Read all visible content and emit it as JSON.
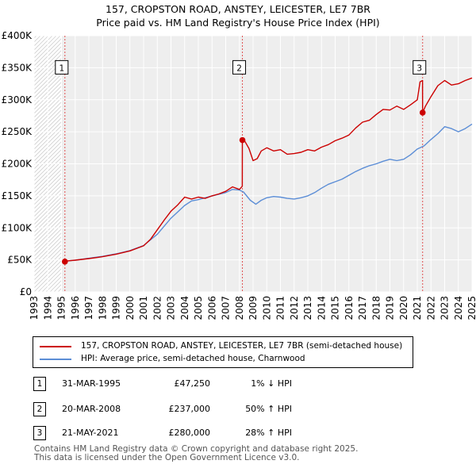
{
  "title": "157, CROPSTON ROAD, ANSTEY, LEICESTER, LE7 7BR",
  "subtitle": "Price paid vs. HM Land Registry's House Price Index (HPI)",
  "chart_data": {
    "type": "line",
    "x_ticks": [
      "1993",
      "1994",
      "1995",
      "1996",
      "1997",
      "1998",
      "1999",
      "2000",
      "2001",
      "2002",
      "2003",
      "2004",
      "2005",
      "2006",
      "2007",
      "2008",
      "2009",
      "2010",
      "2011",
      "2012",
      "2013",
      "2014",
      "2015",
      "2016",
      "2017",
      "2018",
      "2019",
      "2020",
      "2021",
      "2022",
      "2023",
      "2024",
      "2025"
    ],
    "y_ticks": [
      "£0",
      "£50K",
      "£100K",
      "£150K",
      "£200K",
      "£250K",
      "£300K",
      "£350K",
      "£400K"
    ],
    "xlim": [
      1993,
      2025
    ],
    "ylim": [
      0,
      400000
    ],
    "series": [
      {
        "name": "157, CROPSTON ROAD, ANSTEY, LEICESTER, LE7 7BR (semi-detached house)",
        "color": "#cc0000",
        "x": [
          1995.25,
          1995.5,
          1996,
          1997,
          1998,
          1999,
          2000,
          2001,
          2001.5,
          2002,
          2002.5,
          2003,
          2003.5,
          2004,
          2004.5,
          2005,
          2005.5,
          2006,
          2006.5,
          2007,
          2007.5,
          2008.0,
          2008.21,
          2008.22,
          2008.4,
          2008.7,
          2009.0,
          2009.3,
          2009.6,
          2010,
          2010.5,
          2011,
          2011.5,
          2012,
          2012.5,
          2013,
          2013.5,
          2014,
          2014.5,
          2015,
          2015.5,
          2016,
          2016.5,
          2017,
          2017.5,
          2018,
          2018.5,
          2019,
          2019.5,
          2020,
          2020.5,
          2021.0,
          2021.2,
          2021.38,
          2021.39,
          2021.6,
          2022,
          2022.5,
          2023,
          2023.5,
          2024,
          2024.5,
          2025
        ],
        "values": [
          47250,
          48500,
          49500,
          52000,
          55000,
          59000,
          64000,
          72000,
          82000,
          97000,
          112000,
          126000,
          136000,
          148000,
          145000,
          148000,
          146000,
          150000,
          153000,
          157000,
          164000,
          160000,
          165000,
          237000,
          235000,
          224000,
          205000,
          208000,
          220000,
          225000,
          220000,
          222000,
          215000,
          216000,
          218000,
          222000,
          220000,
          226000,
          230000,
          236000,
          240000,
          245000,
          256000,
          265000,
          268000,
          277000,
          285000,
          284000,
          290000,
          285000,
          292000,
          300000,
          328000,
          330000,
          280000,
          290000,
          305000,
          322000,
          330000,
          323000,
          325000,
          330000,
          334000
        ]
      },
      {
        "name": "HPI: Average price, semi-detached house, Charnwood",
        "color": "#5b8dd6",
        "x": [
          1995.25,
          1996,
          1997,
          1998,
          1999,
          2000,
          2001,
          2002,
          2003,
          2004,
          2004.5,
          2005,
          2006,
          2007,
          2007.5,
          2008,
          2008.3,
          2008.8,
          2009.2,
          2009.6,
          2010,
          2010.5,
          2011,
          2011.5,
          2012,
          2012.5,
          2013,
          2013.5,
          2014,
          2014.5,
          2015,
          2015.5,
          2016,
          2016.5,
          2017,
          2017.5,
          2018,
          2018.5,
          2019,
          2019.5,
          2020,
          2020.5,
          2021,
          2021.5,
          2022,
          2022.5,
          2023,
          2023.5,
          2024,
          2024.5,
          2025
        ],
        "values": [
          48000,
          49500,
          52500,
          55500,
          59500,
          64500,
          72500,
          90000,
          115000,
          135000,
          142000,
          144000,
          150000,
          155000,
          160000,
          159000,
          156000,
          143000,
          137000,
          143000,
          147000,
          149000,
          148000,
          146000,
          145000,
          147000,
          150000,
          155000,
          162000,
          168000,
          172000,
          176000,
          182000,
          188000,
          193000,
          197000,
          200000,
          204000,
          207000,
          205000,
          207000,
          214000,
          223000,
          228000,
          238000,
          247000,
          258000,
          255000,
          250000,
          255000,
          262000
        ]
      }
    ],
    "sales": [
      {
        "label": "1",
        "x": 1995.25,
        "price": 47250
      },
      {
        "label": "2",
        "x": 2008.22,
        "price": 237000
      },
      {
        "label": "3",
        "x": 2021.39,
        "price": 280000
      }
    ],
    "marker_box_value": 350000
  },
  "legend": {
    "property_label": "157, CROPSTON ROAD, ANSTEY, LEICESTER, LE7 7BR (semi-detached house)",
    "hpi_label": "HPI: Average price, semi-detached house, Charnwood"
  },
  "transactions": [
    {
      "num": "1",
      "date": "31-MAR-1995",
      "price": "£47,250",
      "hpi": "1% ↓ HPI"
    },
    {
      "num": "2",
      "date": "20-MAR-2008",
      "price": "£237,000",
      "hpi": "50% ↑ HPI"
    },
    {
      "num": "3",
      "date": "21-MAY-2021",
      "price": "£280,000",
      "hpi": "28% ↑ HPI"
    }
  ],
  "footer": {
    "line1": "Contains HM Land Registry data © Crown copyright and database right 2025.",
    "line2": "This data is licensed under the Open Government Licence v3.0."
  }
}
